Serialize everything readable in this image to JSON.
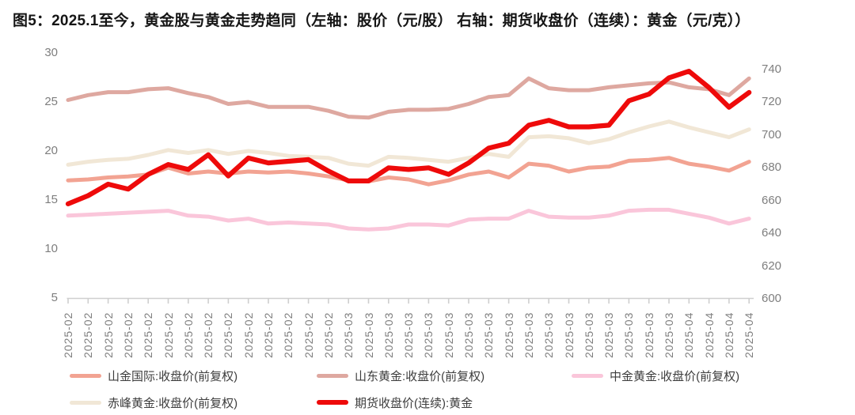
{
  "title": "图5：2025.1至今，黄金股与黄金走势趋同（左轴：股价（元/股） 右轴：期货收盘价（连续）：黄金（元/克））",
  "axes": {
    "left_ticks": [
      30,
      25,
      20,
      15,
      10,
      5
    ],
    "right_ticks": [
      740,
      720,
      700,
      680,
      660,
      640,
      620,
      600
    ],
    "left_range": [
      5,
      30
    ],
    "right_range": [
      600,
      740
    ]
  },
  "chart_data": {
    "type": "line",
    "grid": false,
    "legend_position": "bottom",
    "x_labels": [
      "2025-02",
      "2025-02",
      "2025-02",
      "2025-02",
      "2025-02",
      "2025-02",
      "2025-02",
      "2025-02",
      "2025-02",
      "2025-02",
      "2025-02",
      "2025-02",
      "2025-02",
      "2025-02",
      "2025-03",
      "2025-03",
      "2025-03",
      "2025-03",
      "2025-03",
      "2025-03",
      "2025-03",
      "2025-03",
      "2025-03",
      "2025-03",
      "2025-03",
      "2025-03",
      "2025-03",
      "2025-03",
      "2025-03",
      "2025-03",
      "2025-03",
      "2025-04",
      "2025-04",
      "2025-04",
      "2025-04"
    ],
    "series": [
      {
        "name": "山金国际:收盘价(前复权)",
        "axis": "left",
        "color": "#F2A392",
        "width": 5,
        "values": [
          17.0,
          17.1,
          17.3,
          17.4,
          17.6,
          18.3,
          17.7,
          17.9,
          17.7,
          17.9,
          17.8,
          17.9,
          17.7,
          17.4,
          17.0,
          16.9,
          17.3,
          17.1,
          16.6,
          17.0,
          17.6,
          17.9,
          17.3,
          18.7,
          18.5,
          17.9,
          18.3,
          18.4,
          19.0,
          19.1,
          19.3,
          18.7,
          18.4,
          18.0,
          18.9
        ]
      },
      {
        "name": "山东黄金:收盘价(前复权)",
        "axis": "left",
        "color": "#DEA8A0",
        "width": 5,
        "values": [
          25.2,
          25.7,
          26.0,
          26.0,
          26.3,
          26.4,
          25.9,
          25.5,
          24.8,
          25.0,
          24.5,
          24.5,
          24.5,
          24.1,
          23.5,
          23.4,
          24.0,
          24.2,
          24.2,
          24.3,
          24.8,
          25.5,
          25.7,
          27.4,
          26.4,
          26.2,
          26.2,
          26.5,
          26.7,
          26.9,
          27.0,
          26.5,
          26.3,
          25.7,
          27.4
        ]
      },
      {
        "name": "中金黄金:收盘价(前复权)",
        "axis": "left",
        "color": "#FAC6DA",
        "width": 5,
        "values": [
          13.4,
          13.5,
          13.6,
          13.7,
          13.8,
          13.9,
          13.4,
          13.3,
          12.9,
          13.1,
          12.6,
          12.7,
          12.6,
          12.5,
          12.1,
          12.0,
          12.1,
          12.5,
          12.5,
          12.4,
          13.0,
          13.1,
          13.1,
          13.9,
          13.3,
          13.2,
          13.2,
          13.4,
          13.9,
          14.0,
          14.0,
          13.6,
          13.2,
          12.6,
          13.1
        ]
      },
      {
        "name": "赤峰黄金:收盘价(前复权)",
        "axis": "left",
        "color": "#F1E7D6",
        "width": 5,
        "values": [
          18.6,
          18.9,
          19.1,
          19.2,
          19.6,
          20.1,
          19.8,
          20.1,
          19.7,
          20.0,
          19.8,
          19.5,
          19.4,
          19.3,
          18.7,
          18.5,
          19.4,
          19.3,
          19.1,
          18.9,
          19.3,
          19.7,
          19.4,
          21.4,
          21.5,
          21.3,
          20.8,
          21.2,
          21.9,
          22.5,
          23.0,
          22.4,
          21.9,
          21.4,
          22.2
        ]
      },
      {
        "name": "期货收盘价(连续):黄金",
        "axis": "right",
        "color": "#EE0A0A",
        "width": 6.2,
        "values": [
          658,
          663,
          670,
          667,
          676,
          682,
          679,
          688,
          675,
          686,
          683,
          684,
          685,
          678,
          672,
          672,
          680,
          679,
          680,
          676,
          683,
          692,
          695,
          706,
          709,
          705,
          705,
          706,
          721,
          725,
          735,
          739,
          729,
          717,
          726
        ]
      }
    ]
  }
}
